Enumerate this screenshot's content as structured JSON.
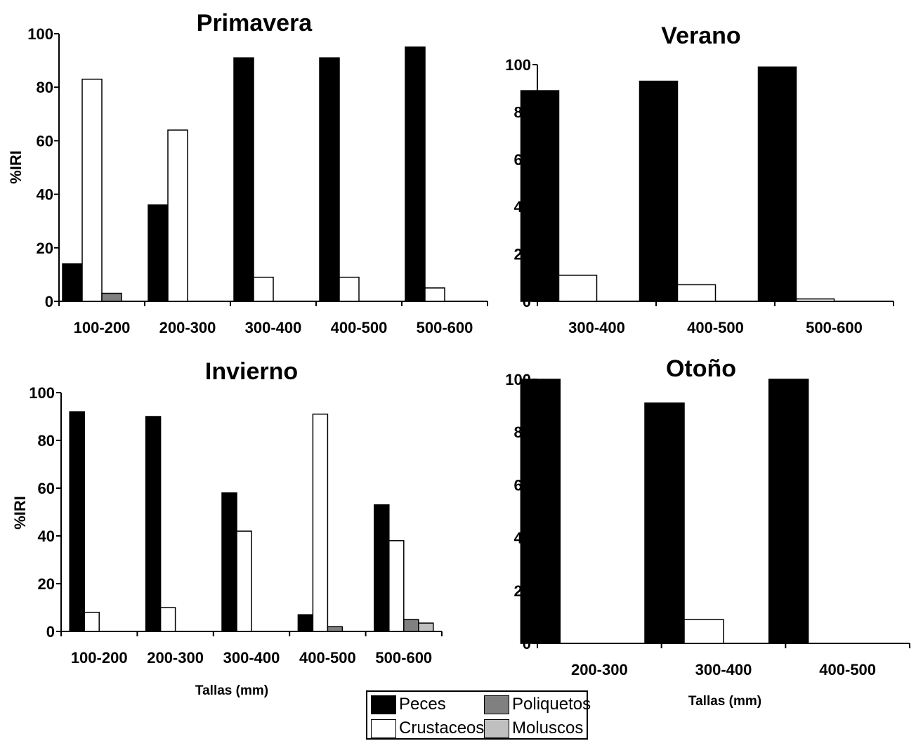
{
  "legend": {
    "items": [
      {
        "label": "Peces",
        "color": "#000000"
      },
      {
        "label": "Crustaceos",
        "color": "#ffffff"
      },
      {
        "label": "Poliquetos",
        "color": "#808080"
      },
      {
        "label": "Moluscos",
        "color": "#c0c0c0"
      }
    ]
  },
  "chart_data": [
    {
      "type": "bar",
      "title": "Primavera",
      "ylabel": "%IRI",
      "xlabel": "",
      "ylim": [
        0,
        100
      ],
      "yticks": [
        0,
        20,
        40,
        60,
        80,
        100
      ],
      "categories": [
        "100-200",
        "200-300",
        "300-400",
        "400-500",
        "500-600"
      ],
      "series": [
        {
          "name": "Peces",
          "values": [
            14,
            36,
            91,
            91,
            95
          ]
        },
        {
          "name": "Crustaceos",
          "values": [
            83,
            64,
            9,
            9,
            5
          ]
        },
        {
          "name": "Poliquetos",
          "values": [
            3,
            0,
            0,
            0,
            0
          ]
        },
        {
          "name": "Moluscos",
          "values": [
            0,
            0,
            0,
            0,
            0
          ]
        }
      ]
    },
    {
      "type": "bar",
      "title": "Verano",
      "ylabel": "",
      "xlabel": "",
      "ylim": [
        0,
        100
      ],
      "yticks": [
        0,
        20,
        40,
        60,
        80,
        100
      ],
      "categories": [
        "300-400",
        "400-500",
        "500-600"
      ],
      "series": [
        {
          "name": "Peces",
          "values": [
            89,
            93,
            99
          ]
        },
        {
          "name": "Crustaceos",
          "values": [
            11,
            7,
            1
          ]
        },
        {
          "name": "Poliquetos",
          "values": [
            0,
            0,
            0
          ]
        },
        {
          "name": "Moluscos",
          "values": [
            0,
            0,
            0
          ]
        }
      ]
    },
    {
      "type": "bar",
      "title": "Invierno",
      "ylabel": "%IRI",
      "xlabel": "Tallas (mm)",
      "ylim": [
        0,
        100
      ],
      "yticks": [
        0,
        20,
        40,
        60,
        80,
        100
      ],
      "categories": [
        "100-200",
        "200-300",
        "300-400",
        "400-500",
        "500-600"
      ],
      "series": [
        {
          "name": "Peces",
          "values": [
            92,
            90,
            58,
            7,
            53
          ]
        },
        {
          "name": "Crustaceos",
          "values": [
            8,
            10,
            42,
            91,
            38
          ]
        },
        {
          "name": "Poliquetos",
          "values": [
            0,
            0,
            0,
            2,
            5
          ]
        },
        {
          "name": "Moluscos",
          "values": [
            0,
            0,
            0,
            0,
            3.5
          ]
        }
      ]
    },
    {
      "type": "bar",
      "title": "Otoño",
      "ylabel": "",
      "xlabel": "Tallas (mm)",
      "ylim": [
        0,
        100
      ],
      "yticks": [
        0,
        20,
        40,
        60,
        80,
        100
      ],
      "categories": [
        "200-300",
        "300-400",
        "400-500"
      ],
      "series": [
        {
          "name": "Peces",
          "values": [
            100,
            91,
            100
          ]
        },
        {
          "name": "Crustaceos",
          "values": [
            0,
            9,
            0
          ]
        },
        {
          "name": "Poliquetos",
          "values": [
            0,
            0,
            0
          ]
        },
        {
          "name": "Moluscos",
          "values": [
            0,
            0,
            0
          ]
        }
      ]
    }
  ]
}
